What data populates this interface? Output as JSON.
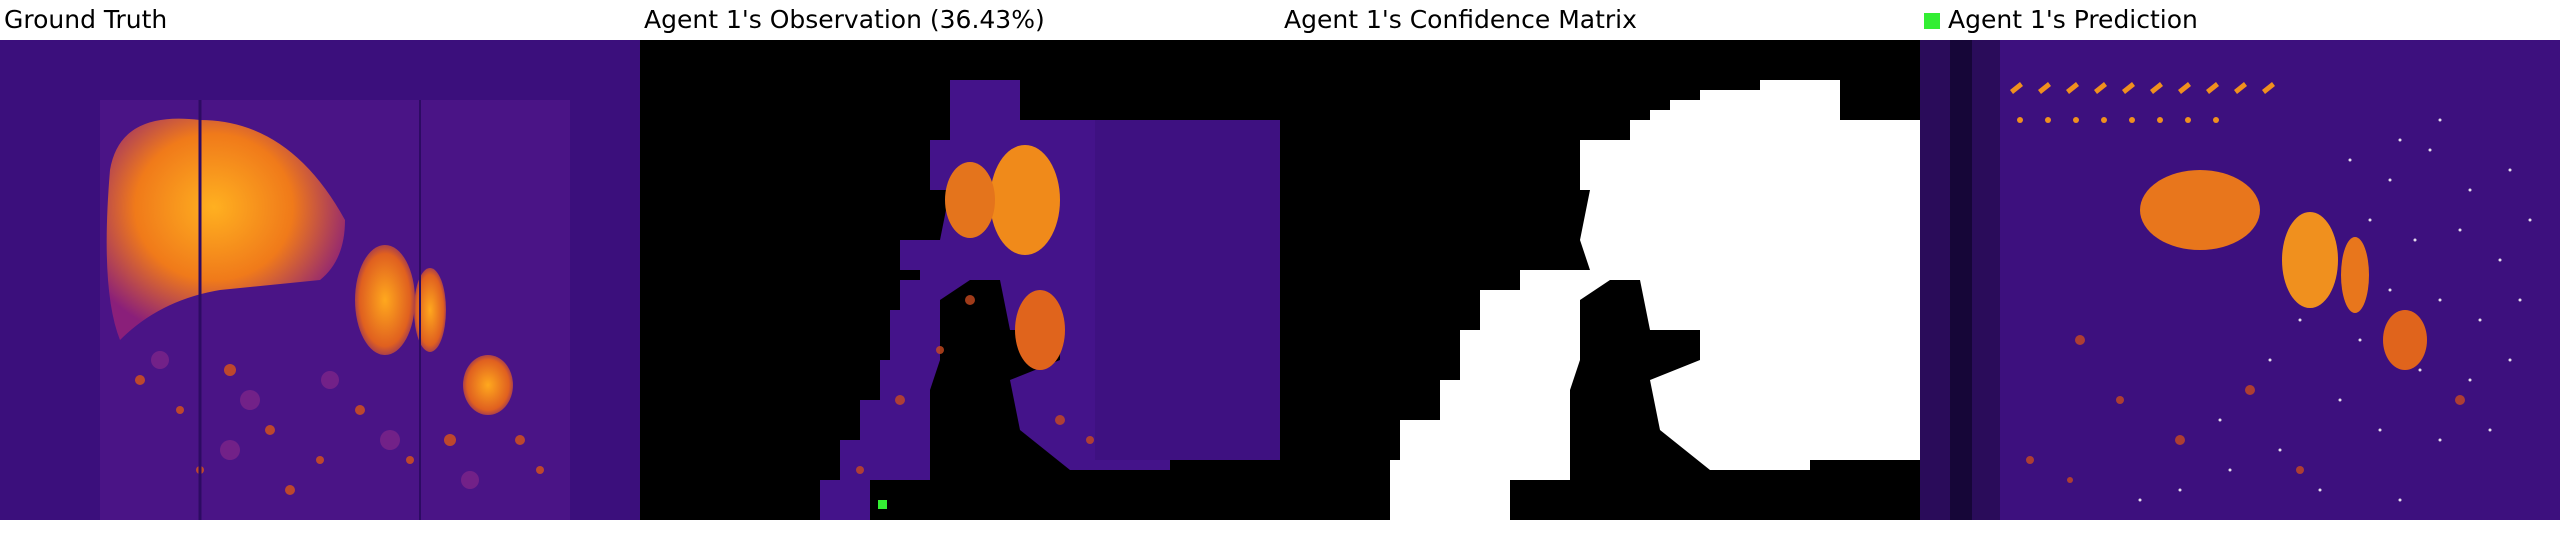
{
  "panels": [
    {
      "title": "Ground Truth"
    },
    {
      "title": "Agent 1's Observation (36.43%)"
    },
    {
      "title": "Agent 1's Confidence Matrix"
    },
    {
      "title": "Agent 1's Prediction"
    }
  ],
  "colors": {
    "agent_marker": "#33ee33",
    "background_dark": "#3a0f7a",
    "hot": "#ff9a1a",
    "mask_white": "#ffffff",
    "mask_black": "#000000"
  }
}
